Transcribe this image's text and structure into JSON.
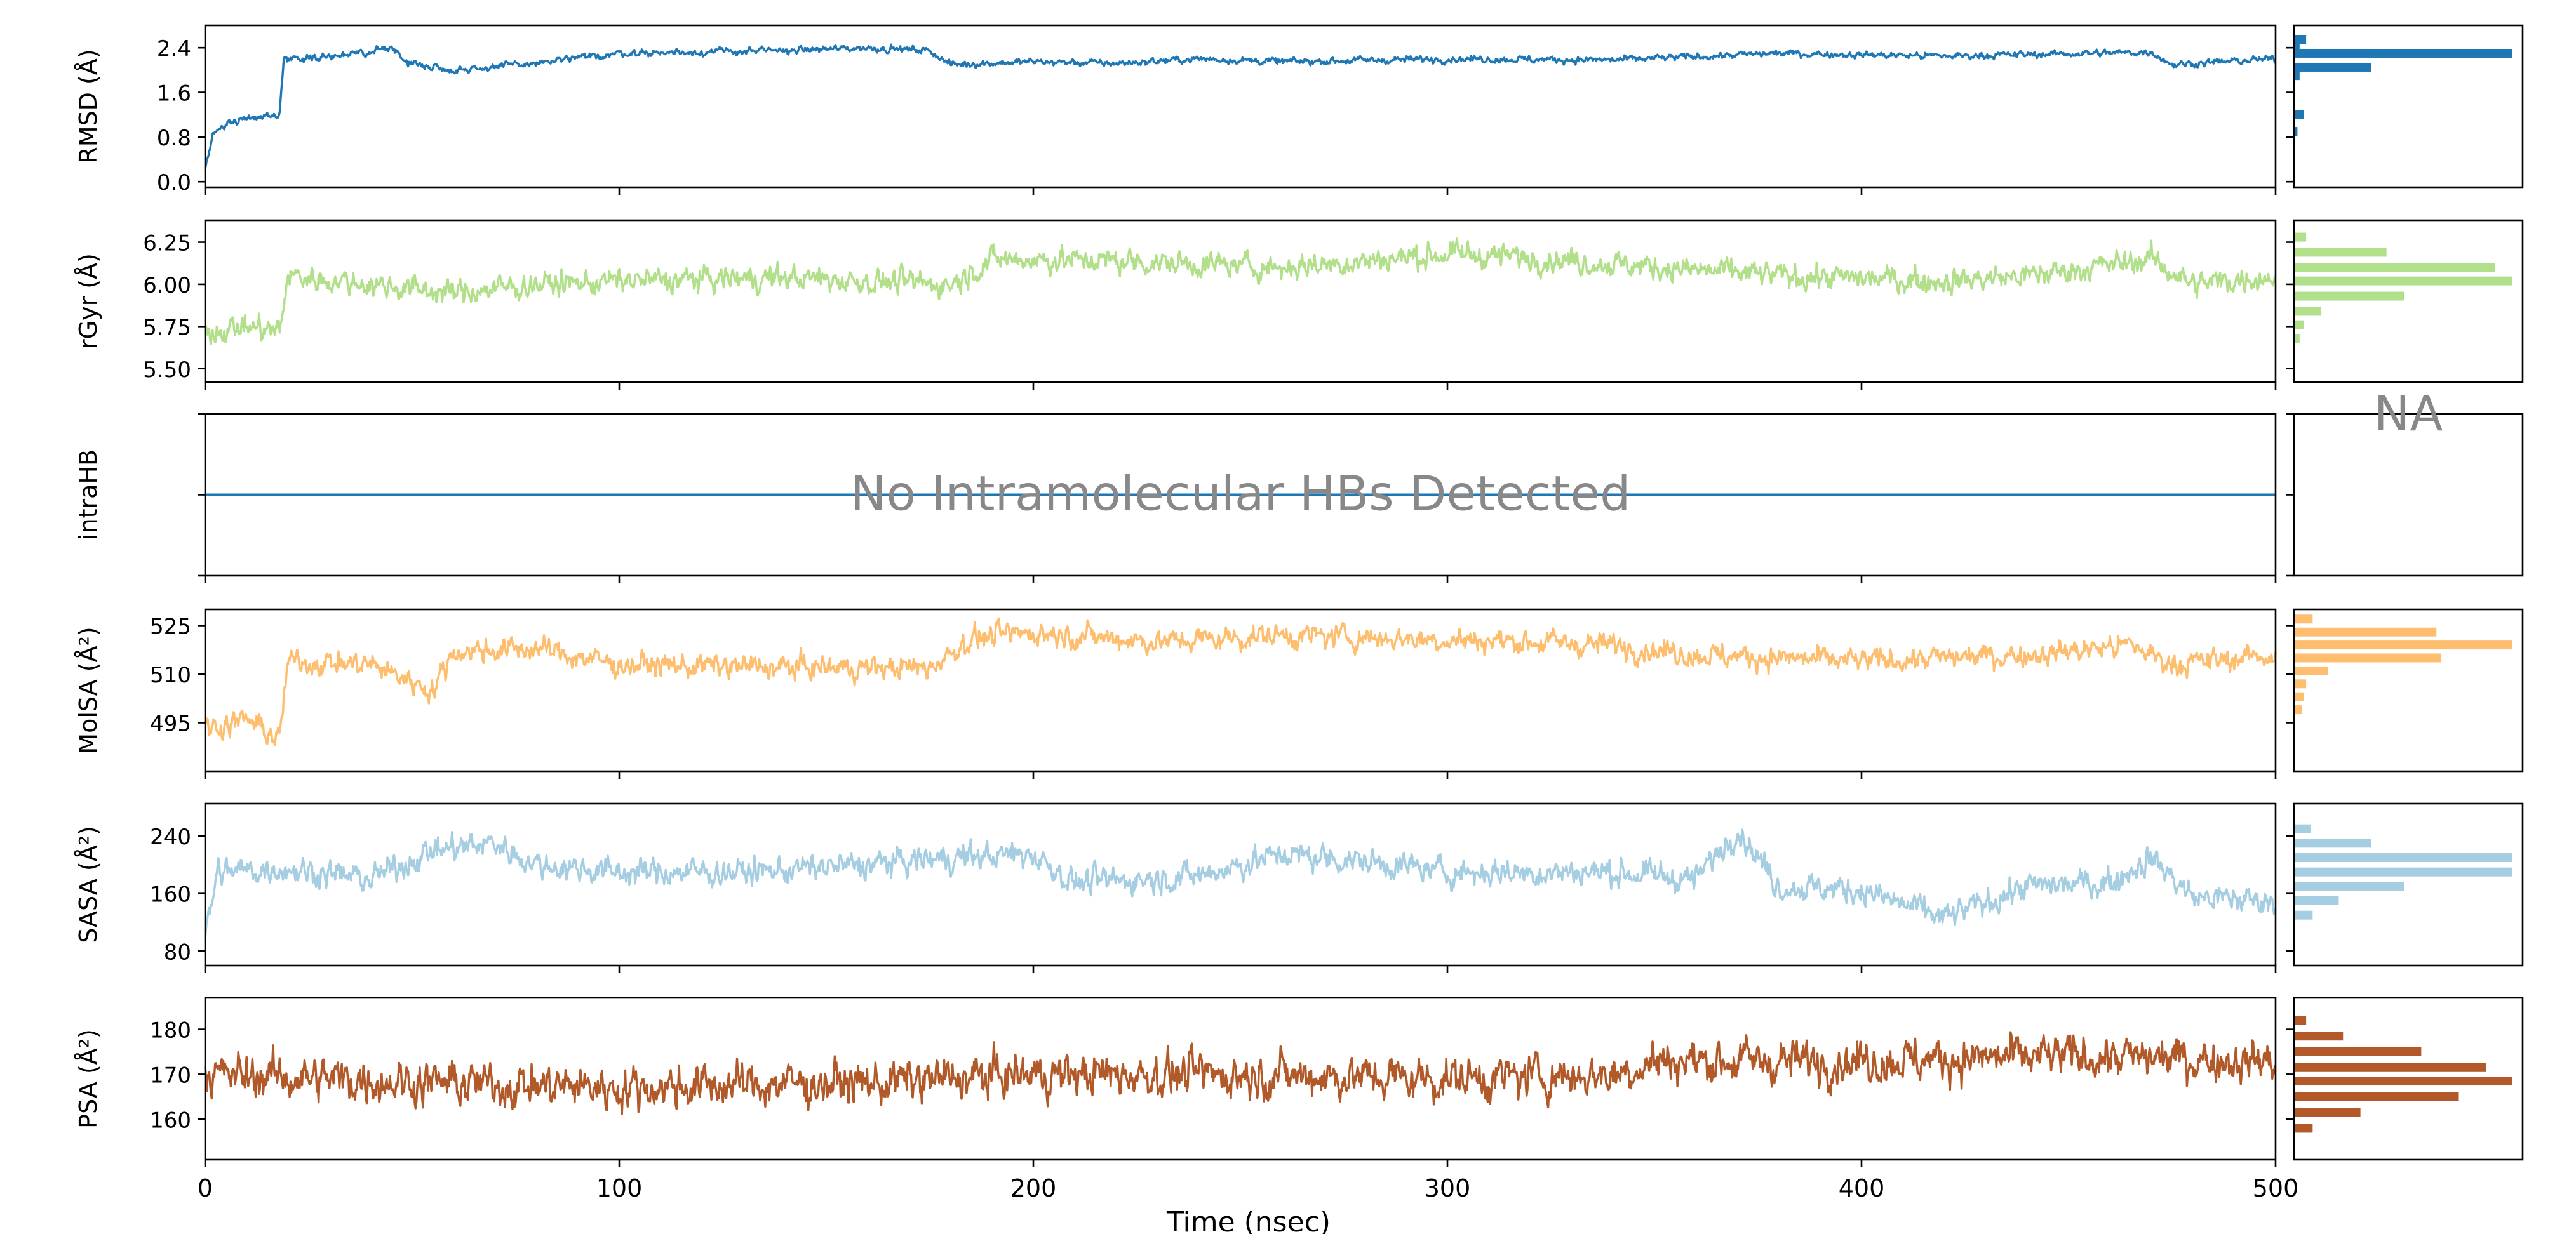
{
  "figure": {
    "xlabel": "Time (nsec)",
    "xticks": [
      0,
      100,
      200,
      300,
      400,
      500
    ]
  },
  "chart_data": [
    {
      "type": "line",
      "ylabel": "RMSD (Å)",
      "color": "#1f77b4",
      "xlim": [
        0,
        500
      ],
      "ylim": [
        -0.1,
        2.8
      ],
      "yticks": [
        0.0,
        0.8,
        1.6,
        2.4
      ],
      "yticklabels": [
        "0.0",
        "0.8",
        "1.6",
        "2.4"
      ],
      "series_profile": [
        [
          0,
          0.2
        ],
        [
          2,
          0.85
        ],
        [
          5,
          1.05
        ],
        [
          10,
          1.15
        ],
        [
          18,
          1.2
        ],
        [
          19,
          2.2
        ],
        [
          30,
          2.25
        ],
        [
          40,
          2.3
        ],
        [
          45,
          2.45
        ],
        [
          48,
          2.15
        ],
        [
          60,
          2.0
        ],
        [
          80,
          2.12
        ],
        [
          100,
          2.3
        ],
        [
          140,
          2.35
        ],
        [
          160,
          2.4
        ],
        [
          175,
          2.35
        ],
        [
          180,
          2.1
        ],
        [
          200,
          2.15
        ],
        [
          220,
          2.12
        ],
        [
          240,
          2.2
        ],
        [
          260,
          2.15
        ],
        [
          300,
          2.2
        ],
        [
          340,
          2.18
        ],
        [
          380,
          2.3
        ],
        [
          420,
          2.25
        ],
        [
          470,
          2.32
        ],
        [
          475,
          2.1
        ],
        [
          500,
          2.2
        ]
      ],
      "noise": 0.06,
      "histogram": {
        "counts": [
          0.05,
          0.02,
          1.0,
          0.35,
          0.02,
          0.04,
          0.01
        ],
        "centers": [
          2.55,
          2.45,
          2.3,
          2.05,
          1.9,
          1.2,
          0.9
        ]
      }
    },
    {
      "type": "line",
      "ylabel": "rGyr (Å)",
      "color": "#b2df8a",
      "xlim": [
        0,
        500
      ],
      "ylim": [
        5.42,
        6.38
      ],
      "yticks": [
        5.5,
        5.75,
        6.0,
        6.25
      ],
      "yticklabels": [
        "5.50",
        "5.75",
        "6.00",
        "6.25"
      ],
      "series_profile": [
        [
          0,
          5.72
        ],
        [
          10,
          5.75
        ],
        [
          18,
          5.72
        ],
        [
          20,
          6.05
        ],
        [
          40,
          6.0
        ],
        [
          60,
          5.95
        ],
        [
          80,
          6.0
        ],
        [
          100,
          6.02
        ],
        [
          140,
          6.04
        ],
        [
          180,
          6.0
        ],
        [
          190,
          6.15
        ],
        [
          220,
          6.14
        ],
        [
          260,
          6.1
        ],
        [
          300,
          6.18
        ],
        [
          320,
          6.16
        ],
        [
          340,
          6.12
        ],
        [
          380,
          6.05
        ],
        [
          420,
          6.02
        ],
        [
          440,
          6.05
        ],
        [
          470,
          6.15
        ],
        [
          480,
          6.0
        ],
        [
          500,
          6.05
        ]
      ],
      "noise": 0.07,
      "histogram": {
        "counts": [
          0.05,
          0.42,
          0.92,
          1.0,
          0.5,
          0.12,
          0.04,
          0.02
        ],
        "centers": [
          6.28,
          6.19,
          6.1,
          6.02,
          5.93,
          5.84,
          5.76,
          5.68
        ]
      }
    },
    {
      "type": "line",
      "ylabel": "intraHB",
      "color": "#1f77b4",
      "xlim": [
        0,
        500
      ],
      "ylim": [
        -0.05,
        0.05
      ],
      "yticks": [
        -0.05,
        0.0,
        0.05
      ],
      "yticklabels": [
        "",
        "",
        ""
      ],
      "series_profile": [
        [
          0,
          0
        ],
        [
          500,
          0
        ]
      ],
      "noise": 0,
      "annotation": "No Intramolecular HBs Detected",
      "histogram_annotation": "NA"
    },
    {
      "type": "line",
      "ylabel": "MolSA (Å²)",
      "color": "#fdbf6f",
      "xlim": [
        0,
        500
      ],
      "ylim": [
        480,
        530
      ],
      "yticks": [
        495,
        510,
        525
      ],
      "yticklabels": [
        "495",
        "510",
        "525"
      ],
      "series_profile": [
        [
          0,
          493
        ],
        [
          10,
          496
        ],
        [
          18,
          490
        ],
        [
          20,
          514
        ],
        [
          40,
          513
        ],
        [
          55,
          505
        ],
        [
          60,
          517
        ],
        [
          80,
          518
        ],
        [
          100,
          513
        ],
        [
          140,
          512
        ],
        [
          175,
          512
        ],
        [
          185,
          521
        ],
        [
          200,
          523
        ],
        [
          230,
          520
        ],
        [
          260,
          522
        ],
        [
          290,
          521
        ],
        [
          320,
          520
        ],
        [
          340,
          519
        ],
        [
          360,
          516
        ],
        [
          400,
          514
        ],
        [
          440,
          516
        ],
        [
          465,
          519
        ],
        [
          475,
          513
        ],
        [
          500,
          516
        ]
      ],
      "noise": 3.5,
      "histogram": {
        "counts": [
          0.08,
          0.65,
          1.0,
          0.67,
          0.15,
          0.05,
          0.04,
          0.03
        ],
        "centers": [
          527,
          523,
          519,
          515,
          511,
          507,
          503,
          499
        ]
      }
    },
    {
      "type": "line",
      "ylabel": "SASA (Å²)",
      "color": "#a6cee3",
      "xlim": [
        0,
        500
      ],
      "ylim": [
        60,
        285
      ],
      "yticks": [
        80,
        160,
        240
      ],
      "yticklabels": [
        "80",
        "160",
        "240"
      ],
      "series_profile": [
        [
          0,
          100
        ],
        [
          3,
          190
        ],
        [
          20,
          195
        ],
        [
          40,
          180
        ],
        [
          55,
          220
        ],
        [
          70,
          230
        ],
        [
          80,
          200
        ],
        [
          100,
          190
        ],
        [
          130,
          190
        ],
        [
          160,
          200
        ],
        [
          180,
          210
        ],
        [
          200,
          215
        ],
        [
          210,
          175
        ],
        [
          240,
          185
        ],
        [
          260,
          215
        ],
        [
          280,
          205
        ],
        [
          300,
          190
        ],
        [
          340,
          190
        ],
        [
          360,
          180
        ],
        [
          370,
          250
        ],
        [
          380,
          170
        ],
        [
          400,
          165
        ],
        [
          420,
          125
        ],
        [
          440,
          170
        ],
        [
          460,
          175
        ],
        [
          470,
          210
        ],
        [
          480,
          155
        ],
        [
          500,
          150
        ]
      ],
      "noise": 18,
      "histogram": {
        "counts": [
          0.07,
          0.35,
          1.0,
          1.0,
          0.5,
          0.2,
          0.08
        ],
        "centers": [
          250,
          230,
          210,
          190,
          170,
          150,
          130
        ]
      }
    },
    {
      "type": "line",
      "ylabel": "PSA (Å²)",
      "color": "#b15928",
      "xlim": [
        0,
        500
      ],
      "ylim": [
        151,
        187
      ],
      "yticks": [
        160,
        170,
        180
      ],
      "yticklabels": [
        "160",
        "170",
        "180"
      ],
      "series_profile": [
        [
          0,
          170
        ],
        [
          30,
          169
        ],
        [
          60,
          168
        ],
        [
          100,
          167
        ],
        [
          140,
          168
        ],
        [
          160,
          168
        ],
        [
          200,
          170
        ],
        [
          250,
          170
        ],
        [
          300,
          169
        ],
        [
          340,
          170
        ],
        [
          350,
          173
        ],
        [
          400,
          173
        ],
        [
          450,
          174
        ],
        [
          500,
          173
        ]
      ],
      "noise": 4.5,
      "histogram": {
        "counts": [
          0.05,
          0.22,
          0.58,
          0.88,
          1.0,
          0.75,
          0.3,
          0.08
        ],
        "centers": [
          182,
          178.5,
          175,
          171.5,
          168.5,
          165,
          161.5,
          158
        ]
      }
    }
  ]
}
